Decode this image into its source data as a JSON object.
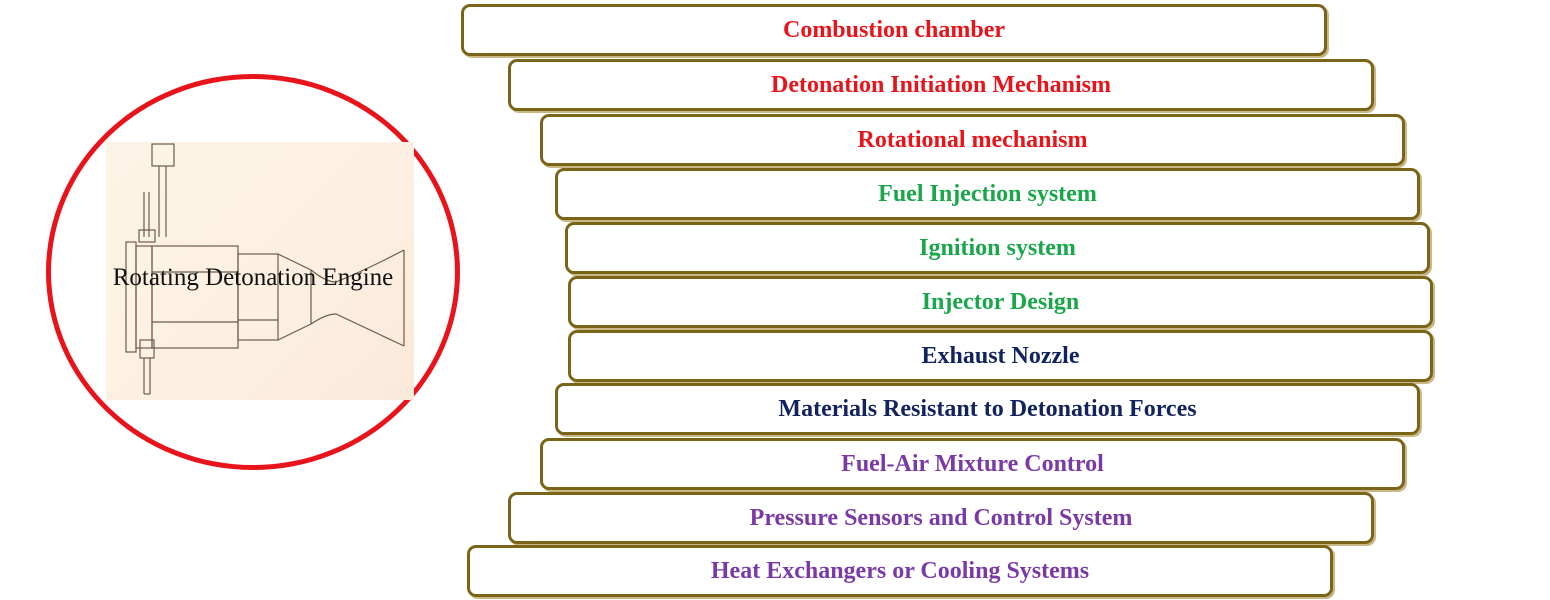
{
  "engine": {
    "label": "Rotating Detonation Engine",
    "ring_color": "#e8141b"
  },
  "components": [
    {
      "label": "Combustion chamber",
      "color": "#e8141b"
    },
    {
      "label": "Detonation Initiation Mechanism",
      "color": "#e8141b"
    },
    {
      "label": "Rotational mechanism",
      "color": "#e8141b"
    },
    {
      "label": "Fuel Injection system",
      "color": "#1aa64a"
    },
    {
      "label": "Ignition system",
      "color": "#1aa64a"
    },
    {
      "label": "Injector Design",
      "color": "#1aa64a"
    },
    {
      "label": "Exhaust Nozzle",
      "color": "#12235e"
    },
    {
      "label": "Materials Resistant to Detonation Forces",
      "color": "#12235e"
    },
    {
      "label": "Fuel-Air Mixture Control",
      "color": "#7a3aa6"
    },
    {
      "label": "Pressure Sensors and Control System",
      "color": "#7a3aa6"
    },
    {
      "label": "Heat Exchangers or Cooling Systems",
      "color": "#7a3aa6"
    }
  ],
  "bar_border_color": "#7a6418"
}
